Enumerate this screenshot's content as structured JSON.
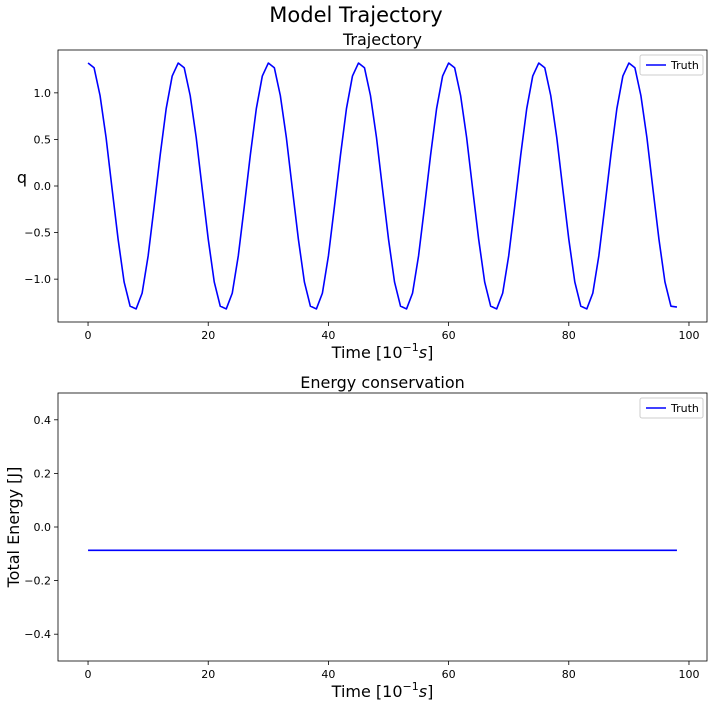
{
  "figure": {
    "suptitle": "Model Trajectory"
  },
  "chart_data": [
    {
      "type": "line",
      "title": "Trajectory",
      "xlabel_base": "Time [10",
      "xlabel_exp": "−1",
      "xlabel_unit": "s",
      "xlabel_close": "]",
      "ylabel": "q",
      "xlim": [
        -5,
        103
      ],
      "ylim": [
        -1.46,
        1.46
      ],
      "xticks": [
        0,
        20,
        40,
        60,
        80,
        100
      ],
      "yticks": [
        -1.0,
        -0.5,
        0.0,
        0.5,
        1.0
      ],
      "xtick_labels": [
        "0",
        "20",
        "40",
        "60",
        "80",
        "100"
      ],
      "ytick_labels": [
        "−1.0",
        "−0.5",
        "0.0",
        "0.5",
        "1.0"
      ],
      "grid": false,
      "legend": {
        "placement": "upper-right",
        "entries": [
          "Truth"
        ]
      },
      "series": [
        {
          "name": "Truth",
          "color": "#0000ff",
          "x": [
            0,
            1,
            2,
            3,
            4,
            5,
            6,
            7,
            8,
            9,
            10,
            11,
            12,
            13,
            14,
            15,
            16,
            17,
            18,
            19,
            20,
            21,
            22,
            23,
            24,
            25,
            26,
            27,
            28,
            29,
            30,
            31,
            32,
            33,
            34,
            35,
            36,
            37,
            38,
            39,
            40,
            41,
            42,
            43,
            44,
            45,
            46,
            47,
            48,
            49,
            50,
            51,
            52,
            53,
            54,
            55,
            56,
            57,
            58,
            59,
            60,
            61,
            62,
            63,
            64,
            65,
            66,
            67,
            68,
            69,
            70,
            71,
            72,
            73,
            74,
            75,
            76,
            77,
            78,
            79,
            80,
            81,
            82,
            83,
            84,
            85,
            86,
            87,
            88,
            89,
            90,
            91,
            92,
            93,
            94,
            95,
            96,
            97,
            98
          ],
          "y": [
            1.32,
            1.27,
            0.97,
            0.52,
            -0.03,
            -0.57,
            -1.03,
            -1.29,
            -1.32,
            -1.15,
            -0.75,
            -0.22,
            0.33,
            0.83,
            1.18,
            1.32,
            1.27,
            0.97,
            0.52,
            -0.03,
            -0.57,
            -1.03,
            -1.29,
            -1.32,
            -1.15,
            -0.75,
            -0.22,
            0.33,
            0.83,
            1.18,
            1.32,
            1.27,
            0.97,
            0.52,
            -0.03,
            -0.57,
            -1.03,
            -1.29,
            -1.32,
            -1.15,
            -0.75,
            -0.22,
            0.33,
            0.83,
            1.18,
            1.32,
            1.27,
            0.97,
            0.52,
            -0.03,
            -0.57,
            -1.03,
            -1.29,
            -1.32,
            -1.15,
            -0.75,
            -0.22,
            0.33,
            0.83,
            1.18,
            1.32,
            1.27,
            0.97,
            0.52,
            -0.03,
            -0.57,
            -1.03,
            -1.29,
            -1.32,
            -1.15,
            -0.75,
            -0.22,
            0.33,
            0.83,
            1.18,
            1.32,
            1.27,
            0.97,
            0.52,
            -0.03,
            -0.57,
            -1.03,
            -1.29,
            -1.32,
            -1.15,
            -0.75,
            -0.22,
            0.33,
            0.83,
            1.18,
            1.32,
            1.27,
            0.97,
            0.52,
            -0.03,
            -0.57,
            -1.03,
            -1.29,
            -1.3
          ]
        }
      ]
    },
    {
      "type": "line",
      "title": "Energy conservation",
      "xlabel_base": "Time [10",
      "xlabel_exp": "−1",
      "xlabel_unit": "s",
      "xlabel_close": "]",
      "ylabel": "Total Energy [J]",
      "xlim": [
        -5,
        103
      ],
      "ylim": [
        -0.5,
        0.5
      ],
      "xticks": [
        0,
        20,
        40,
        60,
        80,
        100
      ],
      "yticks": [
        -0.4,
        -0.2,
        0.0,
        0.2,
        0.4
      ],
      "xtick_labels": [
        "0",
        "20",
        "40",
        "60",
        "80",
        "100"
      ],
      "ytick_labels": [
        "−0.4",
        "−0.2",
        "0.0",
        "0.2",
        "0.4"
      ],
      "grid": false,
      "legend": {
        "placement": "upper-right",
        "entries": [
          "Truth"
        ]
      },
      "series": [
        {
          "name": "Truth",
          "color": "#0000ff",
          "x": [
            0,
            98
          ],
          "y": [
            -0.087,
            -0.087
          ]
        }
      ]
    }
  ]
}
